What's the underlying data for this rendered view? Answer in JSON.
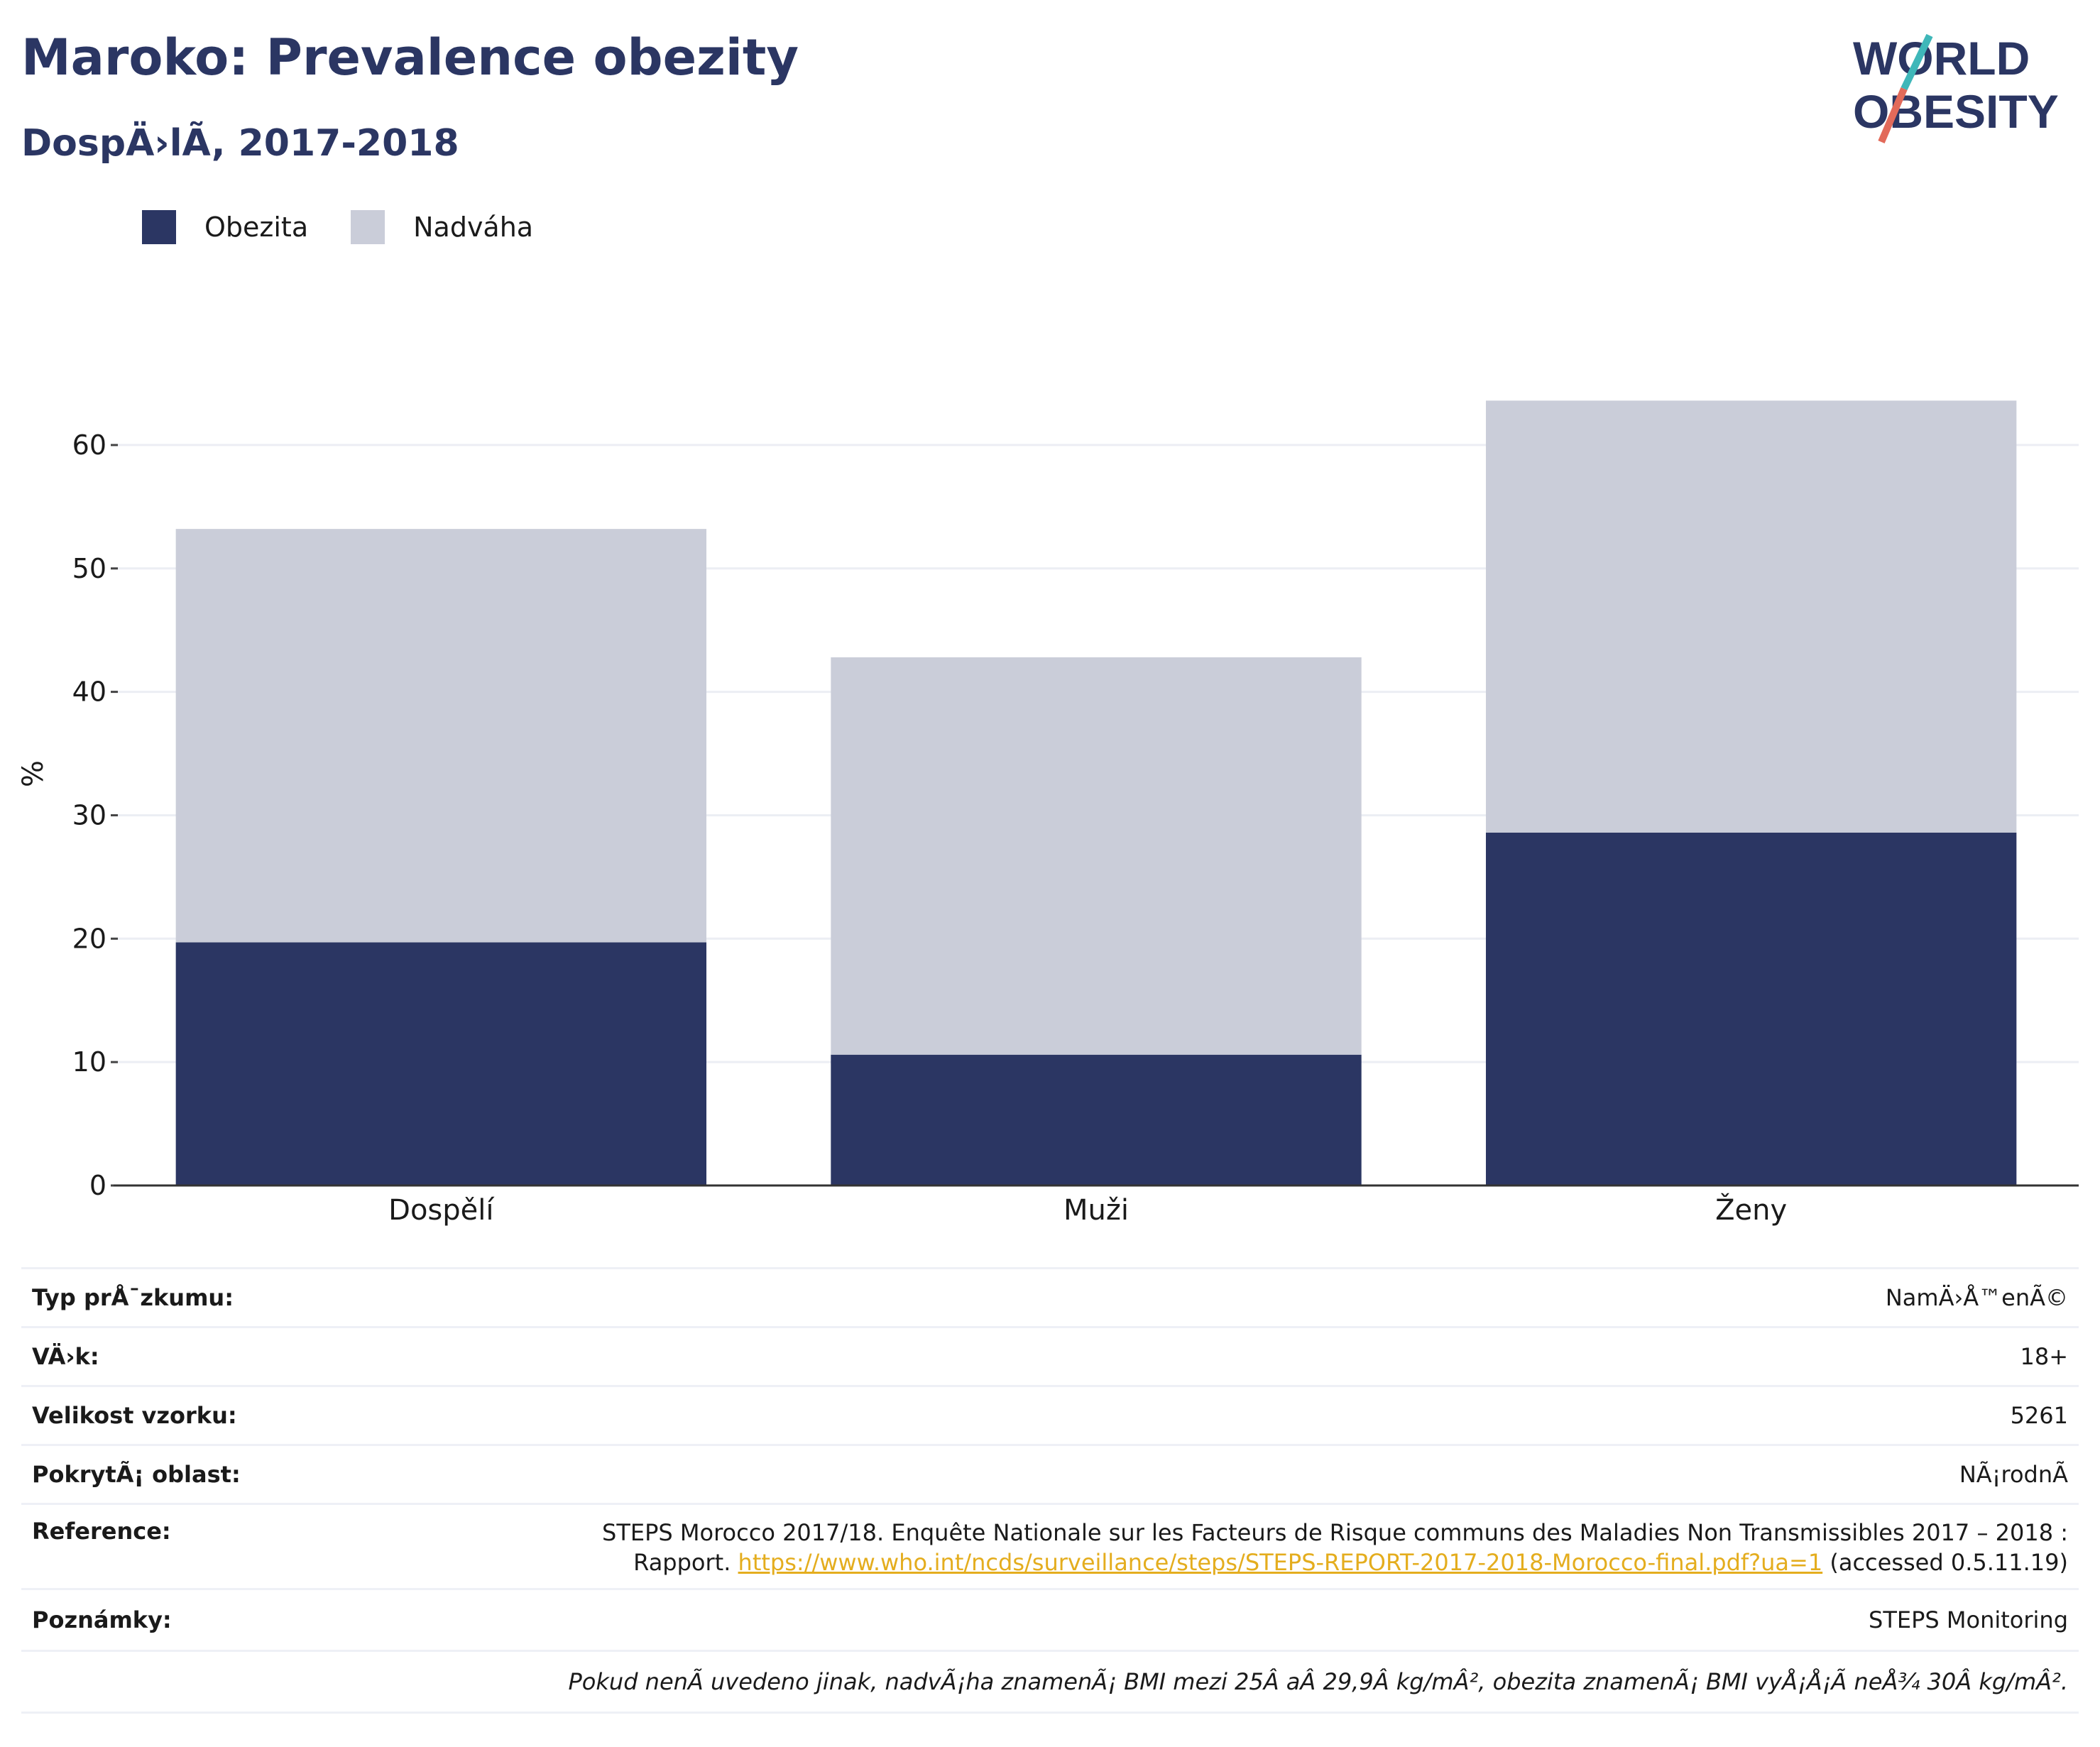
{
  "header": {
    "title": "Maroko: Prevalence obezity",
    "subtitle": "DospÄ›lÃ, 2017-2018"
  },
  "logo": {
    "line1": "WORLD",
    "line2": "OBESITY"
  },
  "legend": [
    {
      "label": "Obezita",
      "color": "#2b3663"
    },
    {
      "label": "Nadváha",
      "color": "#cacdd9"
    }
  ],
  "chart_data": {
    "type": "bar",
    "stacked": true,
    "categories": [
      "Dospělí",
      "Muži",
      "Ženy"
    ],
    "series": [
      {
        "name": "Obezita",
        "values": [
          19.7,
          10.6,
          28.6
        ],
        "color": "#2b3663"
      },
      {
        "name": "Nadváha",
        "values": [
          33.5,
          32.2,
          35.0
        ],
        "color": "#cacdd9"
      }
    ],
    "ylabel": "%",
    "ylim": [
      0,
      65
    ],
    "yticks": [
      0,
      10,
      20,
      30,
      40,
      50,
      60
    ],
    "grid": true,
    "legend_position": "top-left"
  },
  "info": {
    "survey_type_label": "Typ prÅ¯zkumu:",
    "survey_type_value": "NamÄ›Å™enÃ©",
    "age_label": "VÄ›k:",
    "age_value": "18+",
    "sample_label": "Velikost vzorku:",
    "sample_value": "5261",
    "area_label": "PokrytÃ¡ oblast:",
    "area_value": "NÃ¡rodnÃ",
    "reference_label": "Reference:",
    "reference_line1": "STEPS Morocco 2017/18. Enquête Nationale sur les Facteurs de Risque communs des Maladies Non Transmissibles 2017 – 2018 :",
    "reference_prefix": "Rapport.",
    "reference_link": "https://www.who.int/ncds/surveillance/steps/STEPS-REPORT-2017-2018-Morocco-final.pdf?ua=1",
    "reference_suffix": "(accessed 0.5.11.19)",
    "notes_label": "Poznámky:",
    "notes_value": "STEPS Monitoring",
    "footnote": "Pokud nenÃ uvedeno jinak, nadvÃ¡ha znamenÃ¡ BMI mezi 25Â aÂ 29,9Â kg/mÂ², obezita znamenÃ¡ BMI vyÅ¡Å¡Ã neÅ¾ 30Â kg/mÂ²."
  }
}
